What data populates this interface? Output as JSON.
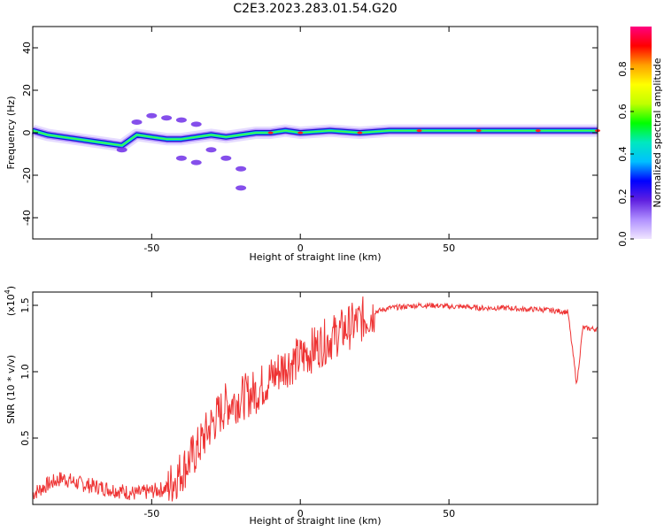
{
  "title": "C2E3.2023.283.01.54.G20",
  "spectrogram": {
    "xlabel": "Height of straight line (km)",
    "ylabel": "Frequency (Hz)",
    "xlim": [
      -90,
      100
    ],
    "ylim": [
      -50,
      50
    ],
    "x_ticks": [
      "-50",
      "0",
      "50"
    ],
    "y_ticks": [
      "40",
      "20",
      "0",
      "-20",
      "-40"
    ],
    "colorbar": {
      "label": "Normalized spectral amplitude",
      "range": [
        0.0,
        1.0
      ],
      "ticks": [
        "0.0",
        "0.2",
        "0.4",
        "0.6",
        "0.8"
      ],
      "colors": [
        "#f0e6ff",
        "#b090ff",
        "#6020e0",
        "#0000ff",
        "#00c0ff",
        "#00e8c0",
        "#00ff00",
        "#c0ff00",
        "#ffff00",
        "#ffa000",
        "#ff0000",
        "#ff0080"
      ]
    }
  },
  "snr": {
    "xlabel": "Height of straight line (km)",
    "ylabel": "SNR (10 * v/v)",
    "scale_label": "(x10",
    "scale_exp": "4",
    "scale_close": ")",
    "xlim": [
      -90,
      100
    ],
    "ylim": [
      0.0,
      1.6
    ],
    "x_ticks": [
      "-50",
      "0",
      "50"
    ],
    "y_ticks": [
      "1.5",
      "1.0",
      "0.5"
    ],
    "line_color": "#ee3333"
  },
  "chart_data": [
    {
      "type": "heatmap",
      "title": "C2E3.2023.283.01.54.G20",
      "xlabel": "Height of straight line (km)",
      "ylabel": "Frequency (Hz)",
      "xlim": [
        -90,
        100
      ],
      "ylim": [
        -50,
        50
      ],
      "trace_center_hz": [
        [
          -90,
          1
        ],
        [
          -85,
          -1
        ],
        [
          -80,
          -2
        ],
        [
          -75,
          -3
        ],
        [
          -70,
          -4
        ],
        [
          -65,
          -5
        ],
        [
          -60,
          -6
        ],
        [
          -55,
          -1
        ],
        [
          -50,
          -2
        ],
        [
          -45,
          -3
        ],
        [
          -40,
          -3
        ],
        [
          -35,
          -2
        ],
        [
          -30,
          -1
        ],
        [
          -25,
          -2
        ],
        [
          -20,
          -1
        ],
        [
          -15,
          0
        ],
        [
          -10,
          0
        ],
        [
          -5,
          1
        ],
        [
          0,
          0
        ],
        [
          10,
          1
        ],
        [
          20,
          0
        ],
        [
          30,
          1
        ],
        [
          40,
          1
        ],
        [
          50,
          1
        ],
        [
          60,
          1
        ],
        [
          70,
          1
        ],
        [
          80,
          1
        ],
        [
          90,
          1
        ],
        [
          100,
          1
        ]
      ],
      "side_lobes_hz": [
        [
          -55,
          5
        ],
        [
          -50,
          8
        ],
        [
          -45,
          7
        ],
        [
          -40,
          6
        ],
        [
          -35,
          4
        ],
        [
          -30,
          -8
        ],
        [
          -25,
          -12
        ],
        [
          -20,
          -17
        ],
        [
          -20,
          -26
        ],
        [
          -40,
          -12
        ],
        [
          -35,
          -14
        ],
        [
          -60,
          -8
        ]
      ]
    },
    {
      "type": "line",
      "title": "C2E3.2023.283.01.54.G20",
      "xlabel": "Height of straight line (km)",
      "ylabel": "SNR (10 * v/v)",
      "y_unit_multiplier": 10000,
      "xlim": [
        -90,
        100
      ],
      "ylim": [
        0.0,
        1.6
      ],
      "x": [
        -90,
        -85,
        -80,
        -75,
        -70,
        -65,
        -60,
        -55,
        -50,
        -45,
        -40,
        -35,
        -30,
        -25,
        -20,
        -15,
        -10,
        -5,
        0,
        5,
        10,
        15,
        20,
        25,
        30,
        35,
        40,
        45,
        50,
        55,
        60,
        65,
        70,
        75,
        80,
        85,
        90,
        93,
        95,
        100
      ],
      "y": [
        0.08,
        0.15,
        0.2,
        0.16,
        0.14,
        0.12,
        0.1,
        0.08,
        0.1,
        0.12,
        0.25,
        0.4,
        0.6,
        0.75,
        0.8,
        0.85,
        0.95,
        1.05,
        1.1,
        1.18,
        1.25,
        1.32,
        1.38,
        1.45,
        1.48,
        1.49,
        1.5,
        1.5,
        1.49,
        1.49,
        1.48,
        1.48,
        1.48,
        1.47,
        1.47,
        1.46,
        1.45,
        0.9,
        1.33,
        1.32
      ]
    }
  ]
}
